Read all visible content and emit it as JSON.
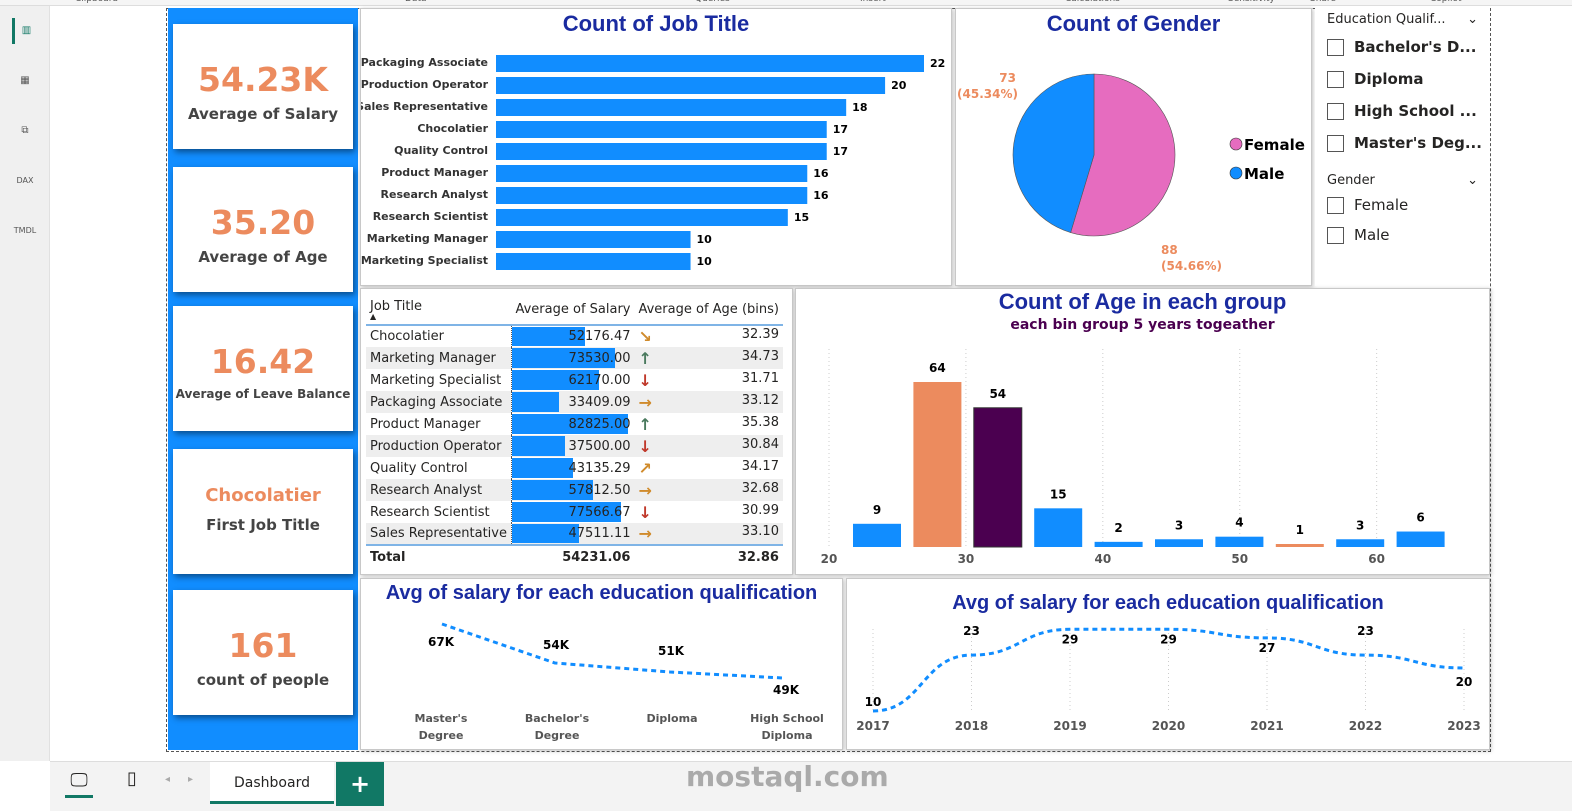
{
  "ribbon": {
    "groups": [
      "Clipboard",
      "Data",
      "Queries",
      "Insert",
      "Calculations",
      "Sensitivity",
      "Share",
      "Copilot"
    ]
  },
  "rail": {
    "icons": [
      "report-view-icon",
      "table-view-icon",
      "model-view-icon",
      "dax-query-icon",
      "tmdl-view-icon"
    ],
    "dax": "DAX",
    "tmdl": "TMDL"
  },
  "kpis": [
    {
      "value": "54.23K",
      "label": "Average of Salary"
    },
    {
      "value": "35.20",
      "label": "Average of Age"
    },
    {
      "value": "16.42",
      "label": "Average of Leave Balance"
    },
    {
      "value": "Chocolatier",
      "label": "First Job Title"
    },
    {
      "value": "161",
      "label": "count of people"
    }
  ],
  "job_chart": {
    "title": "Count of Job Title"
  },
  "gender_chart": {
    "title": "Count of Gender"
  },
  "age_chart": {
    "title": "Count of Age in each group",
    "subtitle": "each bin group 5 years togeather"
  },
  "line1": {
    "title": "Avg of salary for each education qualification"
  },
  "line2": {
    "title": "Avg of salary for each education qualification"
  },
  "slicers": {
    "education": {
      "title": "Education Qualif...",
      "items": [
        "Bachelor's D...",
        "Diploma",
        "High School ...",
        "Master's Deg..."
      ]
    },
    "gender": {
      "title": "Gender",
      "items": [
        "Female",
        "Male"
      ]
    }
  },
  "table": {
    "headers": [
      "Job Title",
      "Average of Salary",
      "Average of Age (bins)"
    ],
    "rows": [
      [
        "Chocolatier",
        "52176.47",
        "32.39",
        "down-right"
      ],
      [
        "Marketing Manager",
        "73530.00",
        "34.73",
        "up"
      ],
      [
        "Marketing Specialist",
        "62170.00",
        "31.71",
        "down"
      ],
      [
        "Packaging Associate",
        "33409.09",
        "33.12",
        "right"
      ],
      [
        "Product Manager",
        "82825.00",
        "35.38",
        "up"
      ],
      [
        "Production Operator",
        "37500.00",
        "30.84",
        "down"
      ],
      [
        "Quality Control",
        "43135.29",
        "34.17",
        "up-right"
      ],
      [
        "Research Analyst",
        "57812.50",
        "32.68",
        "right"
      ],
      [
        "Research Scientist",
        "77566.67",
        "30.99",
        "down"
      ],
      [
        "Sales Representative",
        "47511.11",
        "33.10",
        "right"
      ]
    ],
    "total": [
      "Total",
      "54231.06",
      "32.86"
    ]
  },
  "tabs": {
    "active": "Dashboard",
    "add": "+"
  },
  "watermark": "mostaql.com",
  "colors": {
    "blue": "#118DFF",
    "orange": "#EC8B5E",
    "purple": "#4B0050",
    "pink": "#E66CBF",
    "title": "#1a2ba0"
  },
  "chart_data": [
    {
      "type": "bar",
      "orientation": "horizontal",
      "title": "Count of Job Title",
      "categories": [
        "Packaging Associate",
        "Production Operator",
        "Sales Representative",
        "Chocolatier",
        "Quality Control",
        "Product Manager",
        "Research Analyst",
        "Research Scientist",
        "Marketing Manager",
        "Marketing Specialist"
      ],
      "values": [
        22,
        20,
        18,
        17,
        17,
        16,
        16,
        15,
        10,
        10
      ]
    },
    {
      "type": "pie",
      "title": "Count of Gender",
      "categories": [
        "Female",
        "Male"
      ],
      "values": [
        88,
        73
      ],
      "labels": [
        "88",
        "73"
      ],
      "percents": [
        "(54.66%)",
        "(45.34%)"
      ],
      "legend": "right"
    },
    {
      "type": "bar",
      "title": "Count of Age in each group",
      "subtitle": "each bin group 5 years togeather",
      "x": [
        20,
        25,
        30,
        35,
        40,
        45,
        50,
        55,
        60,
        65
      ],
      "values": [
        9,
        64,
        54,
        15,
        2,
        3,
        4,
        1,
        3,
        6
      ],
      "xticks": [
        "20",
        "30",
        "40",
        "50",
        "60"
      ],
      "xlim": [
        17,
        68
      ]
    },
    {
      "type": "line",
      "title": "Avg of salary for each education qualification",
      "categories": [
        "Master's Degree",
        "Bachelor's Degree",
        "Diploma",
        "High School Diploma"
      ],
      "values": [
        67,
        54,
        51,
        49
      ],
      "labels": [
        "67K",
        "54K",
        "51K",
        "49K"
      ]
    },
    {
      "type": "line",
      "title": "Avg of salary for each education qualification",
      "x": [
        "2017",
        "2018",
        "2019",
        "2020",
        "2021",
        "2022",
        "2023"
      ],
      "values": [
        10,
        23,
        29,
        29,
        27,
        23,
        20
      ]
    }
  ]
}
